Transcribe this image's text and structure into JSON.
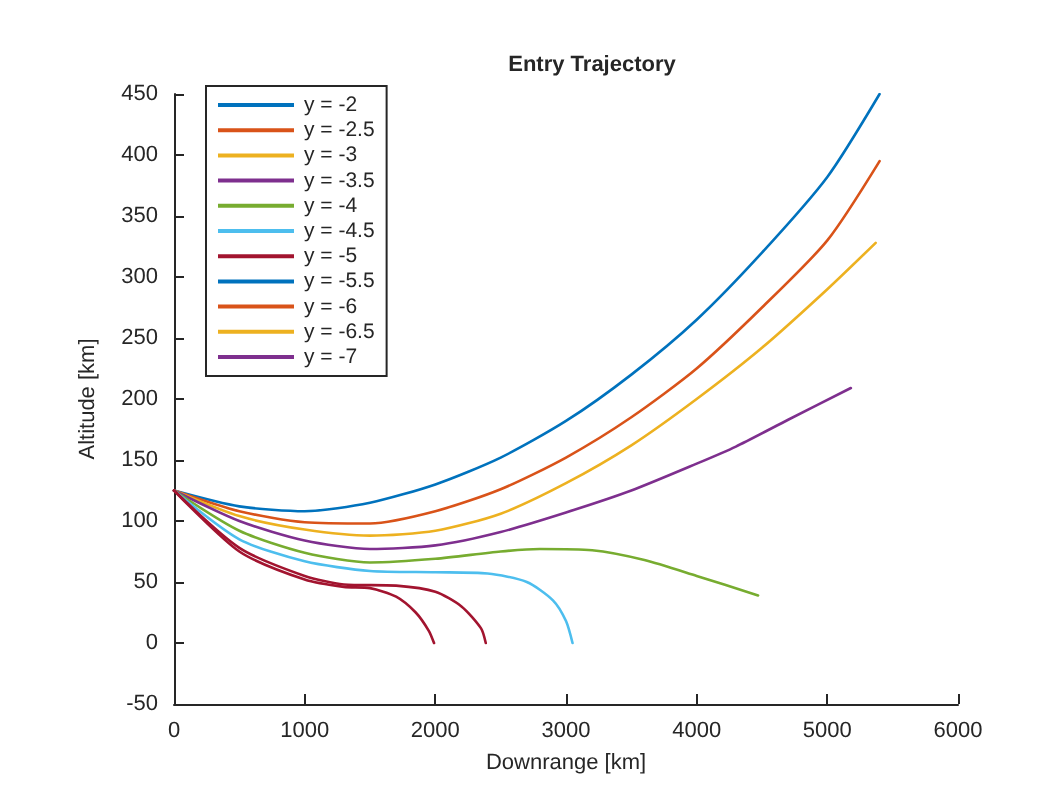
{
  "chart_data": {
    "type": "line",
    "title": "Entry Trajectory",
    "xlabel": "Downrange [km]",
    "ylabel": "Altitude [km]",
    "xlim": [
      0,
      6000
    ],
    "xticks": [
      0,
      1000,
      2000,
      3000,
      4000,
      5000,
      6000
    ],
    "ylim": [
      -50,
      450
    ],
    "yticks": [
      -50,
      0,
      50,
      100,
      150,
      200,
      250,
      300,
      350,
      400,
      450
    ],
    "grid": false,
    "legend": "top left",
    "marker": "none",
    "line_style": "solid",
    "series": [
      {
        "name": "y = -2",
        "color": "#0072bd",
        "x": [
          0,
          500,
          1000,
          1500,
          2000,
          2500,
          3000,
          3500,
          4000,
          4500,
          5000,
          5400
        ],
        "values": [
          125,
          112,
          108,
          115,
          130,
          152,
          182,
          220,
          265,
          320,
          382,
          450
        ]
      },
      {
        "name": "y = -2.5",
        "color": "#d95319",
        "x": [
          0,
          500,
          1000,
          1500,
          2000,
          2500,
          3000,
          3500,
          4000,
          4500,
          5000,
          5400
        ],
        "values": [
          125,
          108,
          99,
          98,
          108,
          126,
          152,
          185,
          225,
          275,
          330,
          395
        ]
      },
      {
        "name": "y = -3",
        "color": "#edb120",
        "x": [
          0,
          500,
          1000,
          1500,
          2000,
          2500,
          3000,
          3500,
          4000,
          4500,
          5000,
          5370
        ],
        "values": [
          125,
          104,
          93,
          88,
          92,
          106,
          131,
          162,
          200,
          242,
          290,
          328
        ]
      },
      {
        "name": "y = -3.5",
        "color": "#7e2f8e",
        "x": [
          0,
          500,
          1000,
          1500,
          2000,
          2500,
          3000,
          3500,
          4000,
          4300,
          4700,
          5180
        ],
        "values": [
          125,
          100,
          84,
          77,
          80,
          91,
          107,
          125,
          147,
          161,
          183,
          209
        ]
      },
      {
        "name": "y = -4",
        "color": "#77ac30",
        "x": [
          0,
          500,
          1000,
          1500,
          2000,
          2500,
          2800,
          3200,
          3600,
          4000,
          4470
        ],
        "values": [
          125,
          92,
          74,
          66,
          69,
          75,
          77,
          76,
          68,
          55,
          39
        ]
      },
      {
        "name": "y = -4.5",
        "color": "#4dbeee",
        "x": [
          0,
          500,
          1000,
          1500,
          2000,
          2400,
          2700,
          2900,
          3000,
          3050
        ],
        "values": [
          125,
          85,
          67,
          59,
          58,
          57,
          50,
          35,
          18,
          0
        ]
      },
      {
        "name": "y = -5",
        "color": "#a2142f",
        "x": [
          0,
          500,
          1000,
          1300,
          1700,
          2000,
          2200,
          2350,
          2386
        ],
        "values": [
          125,
          78,
          55,
          48,
          47,
          42,
          30,
          12,
          0
        ]
      },
      {
        "color": "#a2142f",
        "x": [
          0,
          500,
          1000,
          1300,
          1500,
          1700,
          1850,
          1950,
          1990
        ],
        "values": [
          125,
          75,
          52,
          46,
          45,
          38,
          25,
          10,
          0
        ]
      },
      {
        "name": "y = -5.5",
        "color": "#0072bd"
      },
      {
        "name": "y = -6",
        "color": "#d95319"
      },
      {
        "name": "y = -6.5",
        "color": "#edb120"
      },
      {
        "name": "y = -7",
        "color": "#7e2f8e"
      }
    ]
  }
}
